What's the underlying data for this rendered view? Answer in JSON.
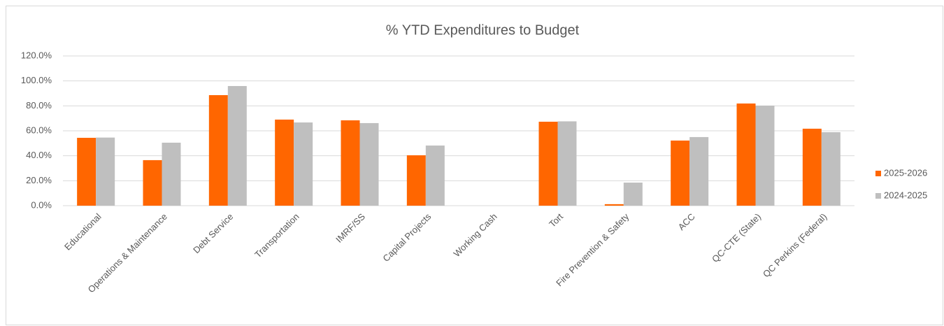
{
  "chart_data": {
    "type": "bar",
    "title": "% YTD Expenditures to Budget",
    "categories": [
      "Educational",
      "Operations & Maintenance",
      "Debt Service",
      "Transportation",
      "IMRF/SS",
      "Capital Projects",
      "Working Cash",
      "Tort",
      "Fire Prevention & Safety",
      "ACC",
      "QC-CTE (State)",
      "QC Perkins (Federal)"
    ],
    "series": [
      {
        "name": "2025-2026",
        "color": "#ff6600",
        "values": [
          54.4,
          36.5,
          88.6,
          69.0,
          68.4,
          40.4,
          0,
          67.3,
          1.2,
          52.2,
          81.9,
          61.7
        ]
      },
      {
        "name": "2024-2025",
        "color": "#bfbfbf",
        "values": [
          54.6,
          50.5,
          95.9,
          66.7,
          66.2,
          48.2,
          0,
          67.6,
          18.5,
          55.0,
          80.2,
          58.9
        ]
      }
    ],
    "ylim": [
      0,
      120
    ],
    "yticks": [
      {
        "value": 0,
        "label": "0.0%"
      },
      {
        "value": 20,
        "label": "20.0%"
      },
      {
        "value": 40,
        "label": "40.0%"
      },
      {
        "value": 60,
        "label": "60.0%"
      },
      {
        "value": 80,
        "label": "80.0%"
      },
      {
        "value": 100,
        "label": "100.0%"
      },
      {
        "value": 120,
        "label": "120.0%"
      }
    ],
    "grid": true,
    "legend": "right"
  }
}
